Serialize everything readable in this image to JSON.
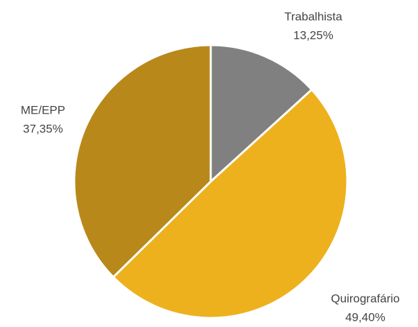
{
  "chart_data": {
    "type": "pie",
    "categories": [
      "Trabalhista",
      "Quirografário",
      "ME/EPP"
    ],
    "values": [
      13.25,
      49.4,
      37.35
    ],
    "value_labels": [
      "13,25%",
      "49,40%",
      "37,35%"
    ],
    "colors": [
      "#808080",
      "#edb11e",
      "#b8891a"
    ]
  }
}
